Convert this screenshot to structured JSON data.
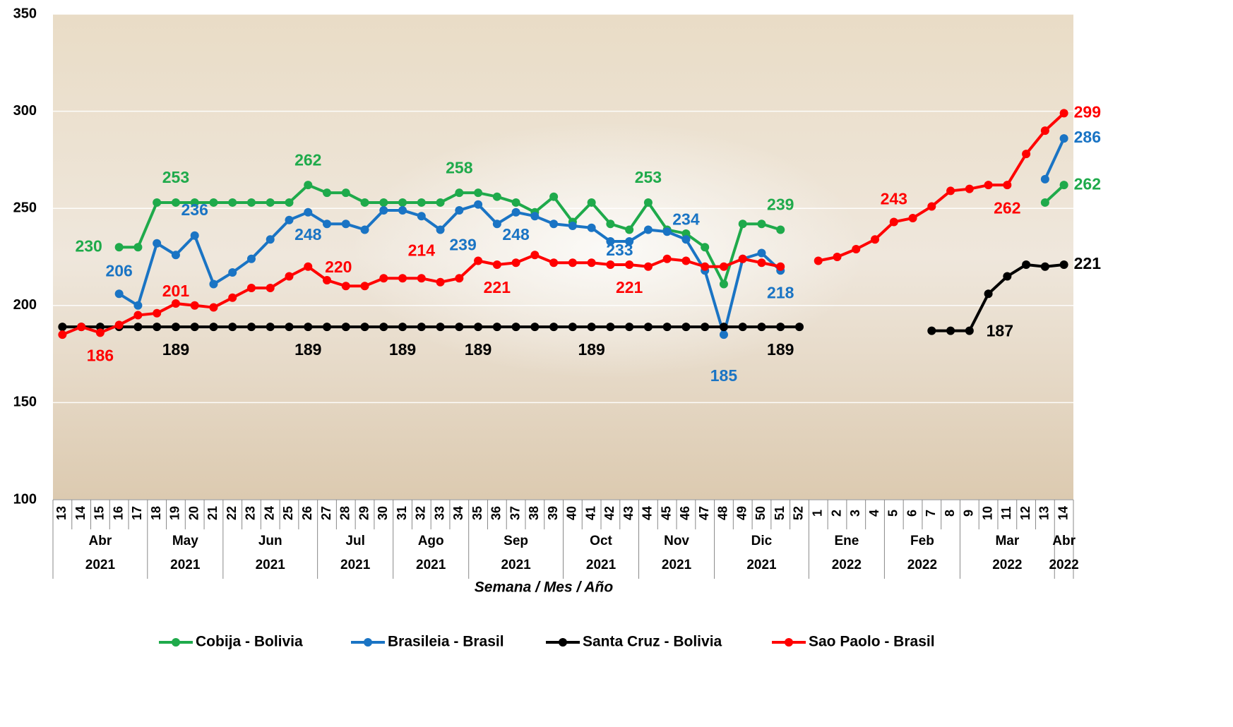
{
  "chart_data": {
    "type": "line",
    "x_label": "Semana / Mes / Año",
    "categories": [
      "13",
      "14",
      "15",
      "16",
      "17",
      "18",
      "19",
      "20",
      "21",
      "22",
      "23",
      "24",
      "25",
      "26",
      "27",
      "28",
      "29",
      "30",
      "31",
      "32",
      "33",
      "34",
      "35",
      "36",
      "37",
      "38",
      "39",
      "40",
      "41",
      "42",
      "43",
      "44",
      "45",
      "46",
      "47",
      "48",
      "49",
      "50",
      "51",
      "52",
      "1",
      "2",
      "3",
      "4",
      "5",
      "6",
      "7",
      "8",
      "9",
      "10",
      "11",
      "12",
      "13",
      "14"
    ],
    "months": [
      "Abr",
      "Abr",
      "Abr",
      "Abr",
      "Abr",
      "May",
      "May",
      "May",
      "May",
      "Jun",
      "Jun",
      "Jun",
      "Jun",
      "Jun",
      "Jul",
      "Jul",
      "Jul",
      "Jul",
      "Ago",
      "Ago",
      "Ago",
      "Ago",
      "Sep",
      "Sep",
      "Sep",
      "Sep",
      "Sep",
      "Oct",
      "Oct",
      "Oct",
      "Oct",
      "Nov",
      "Nov",
      "Nov",
      "Nov",
      "Dic",
      "Dic",
      "Dic",
      "Dic",
      "Dic",
      "Ene",
      "Ene",
      "Ene",
      "Ene",
      "Feb",
      "Feb",
      "Feb",
      "Feb",
      "Mar",
      "Mar",
      "Mar",
      "Mar",
      "Mar",
      "Abr"
    ],
    "years": [
      "2021",
      "2021",
      "2021",
      "2021",
      "2021",
      "2021",
      "2021",
      "2021",
      "2021",
      "2021",
      "2021",
      "2021",
      "2021",
      "2021",
      "2021",
      "2021",
      "2021",
      "2021",
      "2021",
      "2021",
      "2021",
      "2021",
      "2021",
      "2021",
      "2021",
      "2021",
      "2021",
      "2021",
      "2021",
      "2021",
      "2021",
      "2021",
      "2021",
      "2021",
      "2021",
      "2021",
      "2021",
      "2021",
      "2021",
      "2021",
      "2022",
      "2022",
      "2022",
      "2022",
      "2022",
      "2022",
      "2022",
      "2022",
      "2022",
      "2022",
      "2022",
      "2022",
      "2022",
      "2022"
    ],
    "ylim": [
      100,
      350
    ],
    "yticks": [
      100,
      150,
      200,
      250,
      300,
      350
    ],
    "grid": true,
    "legend": "bottom",
    "series": [
      {
        "name": "Cobija - Bolivia",
        "color": "#1faa4b",
        "values": [
          null,
          null,
          null,
          230,
          230,
          253,
          253,
          253,
          253,
          253,
          253,
          253,
          253,
          262,
          258,
          258,
          253,
          253,
          253,
          253,
          253,
          258,
          258,
          256,
          253,
          248,
          256,
          243,
          253,
          242,
          239,
          253,
          239,
          237,
          230,
          211,
          242,
          242,
          239,
          null,
          null,
          null,
          null,
          null,
          null,
          null,
          null,
          null,
          null,
          null,
          null,
          null,
          253,
          262
        ],
        "value_labels": [
          null,
          null,
          null,
          "230",
          null,
          null,
          "253",
          null,
          null,
          null,
          null,
          null,
          null,
          "262",
          null,
          null,
          null,
          null,
          null,
          null,
          null,
          "258",
          null,
          null,
          null,
          null,
          null,
          null,
          null,
          null,
          null,
          "253",
          null,
          null,
          null,
          null,
          null,
          null,
          "239",
          null,
          null,
          null,
          null,
          null,
          null,
          null,
          null,
          null,
          null,
          null,
          null,
          null,
          null,
          "262"
        ]
      },
      {
        "name": "Brasileia - Brasil",
        "color": "#1a74c4",
        "values": [
          null,
          null,
          null,
          206,
          200,
          232,
          226,
          236,
          211,
          217,
          224,
          234,
          244,
          248,
          242,
          242,
          239,
          249,
          249,
          246,
          239,
          249,
          252,
          242,
          248,
          246,
          242,
          241,
          240,
          233,
          233,
          239,
          238,
          234,
          218,
          185,
          224,
          227,
          218,
          null,
          null,
          null,
          null,
          null,
          null,
          null,
          null,
          null,
          null,
          null,
          null,
          null,
          265,
          286
        ],
        "value_labels": [
          null,
          null,
          null,
          "206",
          null,
          null,
          null,
          "236",
          null,
          null,
          null,
          null,
          null,
          "248",
          null,
          null,
          null,
          null,
          null,
          null,
          "239",
          null,
          null,
          null,
          "248",
          null,
          null,
          null,
          null,
          "233",
          null,
          null,
          null,
          "234",
          null,
          "185",
          null,
          null,
          "218",
          null,
          null,
          null,
          null,
          null,
          null,
          null,
          null,
          null,
          null,
          null,
          null,
          null,
          null,
          "286"
        ]
      },
      {
        "name": "Santa Cruz - Bolivia",
        "color": "#000000",
        "values": [
          189,
          189,
          189,
          189,
          189,
          189,
          189,
          189,
          189,
          189,
          189,
          189,
          189,
          189,
          189,
          189,
          189,
          189,
          189,
          189,
          189,
          189,
          189,
          189,
          189,
          189,
          189,
          189,
          189,
          189,
          189,
          189,
          189,
          189,
          189,
          189,
          189,
          189,
          189,
          189,
          null,
          null,
          null,
          null,
          null,
          null,
          187,
          187,
          187,
          206,
          215,
          221,
          220,
          221
        ],
        "value_labels": [
          null,
          null,
          null,
          null,
          null,
          null,
          "189",
          null,
          null,
          null,
          null,
          null,
          null,
          "189",
          null,
          null,
          null,
          null,
          "189",
          null,
          null,
          null,
          "189",
          null,
          null,
          null,
          null,
          null,
          "189",
          null,
          null,
          null,
          null,
          null,
          null,
          null,
          null,
          null,
          "189",
          null,
          null,
          null,
          null,
          null,
          null,
          null,
          null,
          null,
          "187",
          null,
          null,
          null,
          null,
          "221"
        ]
      },
      {
        "name": "Sao Paolo - Brasil",
        "color": "#ff0000",
        "values": [
          185,
          189,
          186,
          190,
          195,
          196,
          201,
          200,
          199,
          204,
          209,
          209,
          215,
          220,
          213,
          210,
          210,
          214,
          214,
          214,
          212,
          214,
          223,
          221,
          222,
          226,
          222,
          222,
          222,
          221,
          221,
          220,
          224,
          223,
          220,
          220,
          224,
          222,
          220,
          null,
          223,
          225,
          229,
          234,
          243,
          245,
          251,
          259,
          260,
          262,
          262,
          278,
          290,
          299
        ],
        "value_labels": [
          null,
          null,
          "186",
          null,
          null,
          null,
          "201",
          null,
          null,
          null,
          null,
          null,
          null,
          "220",
          null,
          null,
          null,
          null,
          null,
          "214",
          null,
          null,
          null,
          "221",
          null,
          null,
          null,
          null,
          null,
          null,
          "221",
          null,
          null,
          null,
          null,
          null,
          null,
          null,
          null,
          null,
          null,
          null,
          null,
          null,
          "243",
          null,
          null,
          null,
          null,
          null,
          "262",
          null,
          null,
          "299"
        ]
      }
    ]
  }
}
